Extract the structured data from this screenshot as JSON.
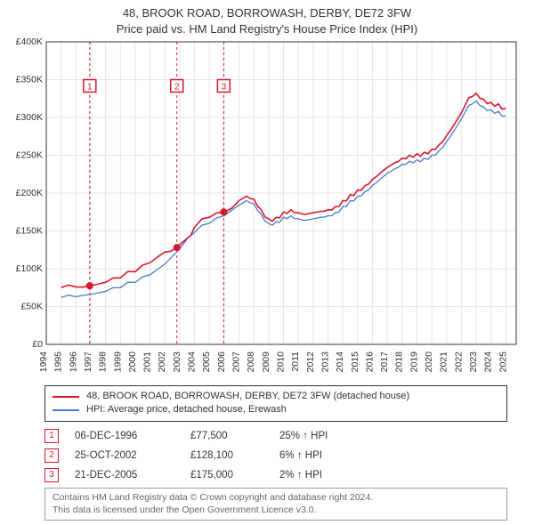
{
  "title_line1": "48, BROOK ROAD, BORROWASH, DERBY, DE72 3FW",
  "title_line2": "Price paid vs. HM Land Registry's House Price Index (HPI)",
  "chart": {
    "type": "line",
    "background_color": "#ffffff",
    "grid_color": "#e6e6e6",
    "axis_color": "#333333",
    "tick_fontsize": 10.5,
    "xlim": [
      1994,
      2025.7
    ],
    "x_ticks": [
      1994,
      1995,
      1996,
      1997,
      1998,
      1999,
      2000,
      2001,
      2002,
      2003,
      2004,
      2005,
      2006,
      2007,
      2008,
      2009,
      2010,
      2011,
      2012,
      2013,
      2014,
      2015,
      2016,
      2017,
      2018,
      2019,
      2020,
      2021,
      2022,
      2023,
      2024,
      2025
    ],
    "ylim": [
      0,
      400000
    ],
    "y_ticks": [
      0,
      50000,
      100000,
      150000,
      200000,
      250000,
      300000,
      350000,
      400000
    ],
    "y_tick_labels": [
      "£0",
      "£50K",
      "£100K",
      "£150K",
      "£200K",
      "£250K",
      "£300K",
      "£350K",
      "£400K"
    ],
    "series": [
      {
        "name": "property",
        "label": "48, BROOK ROAD, BORROWASH, DERBY, DE72 3FW (detached house)",
        "color": "#d9162a",
        "line_width": 1.6,
        "data": [
          [
            1995.0,
            75000
          ],
          [
            1996.0,
            76000
          ],
          [
            1996.93,
            77500
          ],
          [
            1998.0,
            82000
          ],
          [
            1999.0,
            88000
          ],
          [
            2000.0,
            96000
          ],
          [
            2001.0,
            108000
          ],
          [
            2002.0,
            122000
          ],
          [
            2002.81,
            128100
          ],
          [
            2003.5,
            140000
          ],
          [
            2004.0,
            155000
          ],
          [
            2005.0,
            168000
          ],
          [
            2005.97,
            175000
          ],
          [
            2006.5,
            180000
          ],
          [
            2007.0,
            190000
          ],
          [
            2007.5,
            196000
          ],
          [
            2008.0,
            192000
          ],
          [
            2008.5,
            178000
          ],
          [
            2009.0,
            166000
          ],
          [
            2009.5,
            168000
          ],
          [
            2010.0,
            175000
          ],
          [
            2010.5,
            178000
          ],
          [
            2011.0,
            174000
          ],
          [
            2011.5,
            172000
          ],
          [
            2012.0,
            174000
          ],
          [
            2012.5,
            176000
          ],
          [
            2013.0,
            178000
          ],
          [
            2013.5,
            182000
          ],
          [
            2014.0,
            190000
          ],
          [
            2014.5,
            198000
          ],
          [
            2015.0,
            204000
          ],
          [
            2015.5,
            210000
          ],
          [
            2016.0,
            218000
          ],
          [
            2016.5,
            226000
          ],
          [
            2017.0,
            234000
          ],
          [
            2017.5,
            240000
          ],
          [
            2018.0,
            246000
          ],
          [
            2018.5,
            250000
          ],
          [
            2019.0,
            252000
          ],
          [
            2019.5,
            254000
          ],
          [
            2020.0,
            258000
          ],
          [
            2020.5,
            264000
          ],
          [
            2021.0,
            276000
          ],
          [
            2021.5,
            290000
          ],
          [
            2022.0,
            306000
          ],
          [
            2022.5,
            326000
          ],
          [
            2023.0,
            332000
          ],
          [
            2023.5,
            324000
          ],
          [
            2024.0,
            320000
          ],
          [
            2024.5,
            318000
          ],
          [
            2025.0,
            312000
          ]
        ]
      },
      {
        "name": "hpi",
        "label": "HPI: Average price, detached house, Erewash",
        "color": "#4a7bc8",
        "line_width": 1.3,
        "data": [
          [
            1995.0,
            62000
          ],
          [
            1996.0,
            63000
          ],
          [
            1997.0,
            66000
          ],
          [
            1998.0,
            70000
          ],
          [
            1999.0,
            75000
          ],
          [
            2000.0,
            82000
          ],
          [
            2001.0,
            92000
          ],
          [
            2002.0,
            106000
          ],
          [
            2003.0,
            126000
          ],
          [
            2004.0,
            148000
          ],
          [
            2005.0,
            160000
          ],
          [
            2006.0,
            170000
          ],
          [
            2007.0,
            184000
          ],
          [
            2007.5,
            190000
          ],
          [
            2008.0,
            186000
          ],
          [
            2008.5,
            172000
          ],
          [
            2009.0,
            160000
          ],
          [
            2009.5,
            162000
          ],
          [
            2010.0,
            168000
          ],
          [
            2010.5,
            170000
          ],
          [
            2011.0,
            166000
          ],
          [
            2011.5,
            164000
          ],
          [
            2012.0,
            166000
          ],
          [
            2012.5,
            168000
          ],
          [
            2013.0,
            170000
          ],
          [
            2013.5,
            174000
          ],
          [
            2014.0,
            182000
          ],
          [
            2014.5,
            190000
          ],
          [
            2015.0,
            196000
          ],
          [
            2015.5,
            202000
          ],
          [
            2016.0,
            210000
          ],
          [
            2016.5,
            218000
          ],
          [
            2017.0,
            226000
          ],
          [
            2017.5,
            232000
          ],
          [
            2018.0,
            238000
          ],
          [
            2018.5,
            242000
          ],
          [
            2019.0,
            244000
          ],
          [
            2019.5,
            246000
          ],
          [
            2020.0,
            250000
          ],
          [
            2020.5,
            256000
          ],
          [
            2021.0,
            268000
          ],
          [
            2021.5,
            282000
          ],
          [
            2022.0,
            298000
          ],
          [
            2022.5,
            316000
          ],
          [
            2023.0,
            322000
          ],
          [
            2023.5,
            314000
          ],
          [
            2024.0,
            310000
          ],
          [
            2024.5,
            308000
          ],
          [
            2025.0,
            302000
          ]
        ]
      }
    ],
    "markers": [
      {
        "n": "1",
        "x": 1996.93,
        "y": 77500,
        "color": "#d9162a",
        "box_y": 350000
      },
      {
        "n": "2",
        "x": 2002.81,
        "y": 128100,
        "color": "#d9162a",
        "box_y": 350000
      },
      {
        "n": "3",
        "x": 2005.97,
        "y": 175000,
        "color": "#d9162a",
        "box_y": 350000
      }
    ]
  },
  "legend": {
    "series1": "48, BROOK ROAD, BORROWASH, DERBY, DE72 3FW (detached house)",
    "series2": "HPI: Average price, detached house, Erewash",
    "color1": "#d9162a",
    "color2": "#4a7bc8"
  },
  "sales": [
    {
      "n": "1",
      "date": "06-DEC-1996",
      "price": "£77,500",
      "diff": "25% ↑ HPI"
    },
    {
      "n": "2",
      "date": "25-OCT-2002",
      "price": "£128,100",
      "diff": "6% ↑ HPI"
    },
    {
      "n": "3",
      "date": "21-DEC-2005",
      "price": "£175,000",
      "diff": "2% ↑ HPI"
    }
  ],
  "attribution_line1": "Contains HM Land Registry data © Crown copyright and database right 2024.",
  "attribution_line2": "This data is licensed under the Open Government Licence v3.0."
}
